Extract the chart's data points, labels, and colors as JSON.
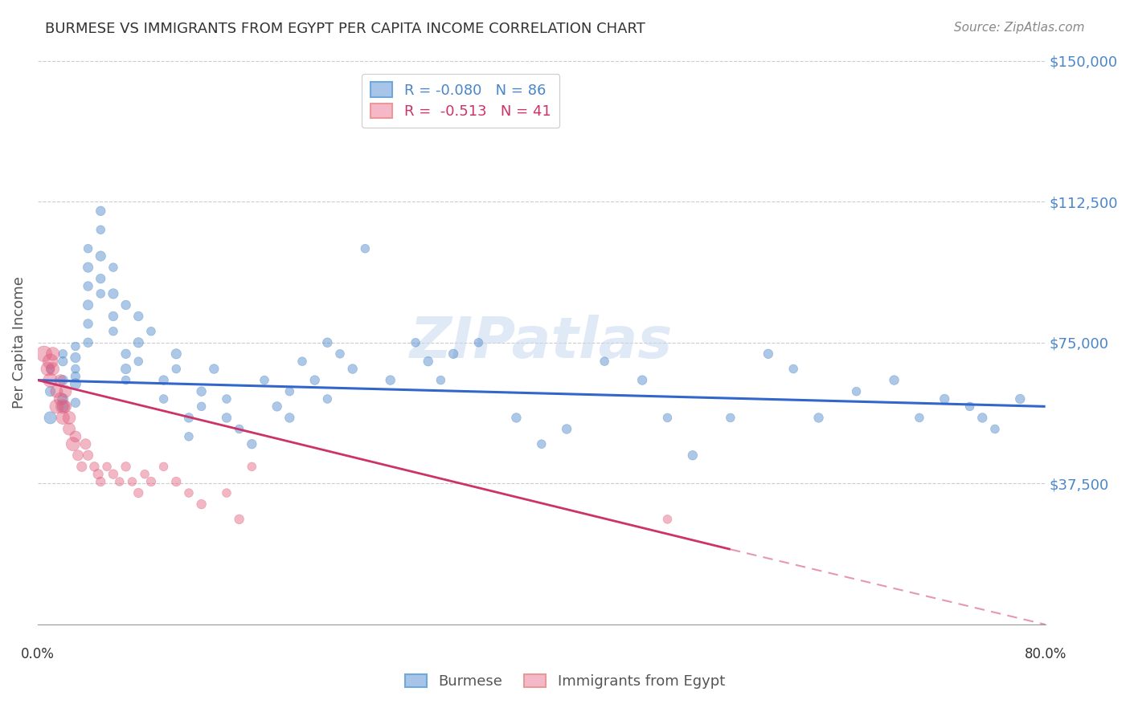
{
  "title": "BURMESE VS IMMIGRANTS FROM EGYPT PER CAPITA INCOME CORRELATION CHART",
  "source": "Source: ZipAtlas.com",
  "ylabel": "Per Capita Income",
  "yticks": [
    0,
    37500,
    75000,
    112500,
    150000
  ],
  "ytick_labels": [
    "",
    "$37,500",
    "$75,000",
    "$112,500",
    "$150,000"
  ],
  "ylim": [
    0,
    150000
  ],
  "xlim": [
    0.0,
    0.8
  ],
  "watermark": "ZIPatlas",
  "blue_color": "#4a86c8",
  "pink_color": "#e06080",
  "blue_line_color": "#3366cc",
  "pink_line_color": "#cc3366",
  "grid_color": "#cccccc",
  "title_color": "#333333",
  "axis_label_color": "#4a86c8",
  "burmese_scatter": {
    "x": [
      0.01,
      0.01,
      0.01,
      0.02,
      0.02,
      0.02,
      0.02,
      0.02,
      0.03,
      0.03,
      0.03,
      0.03,
      0.03,
      0.03,
      0.04,
      0.04,
      0.04,
      0.04,
      0.04,
      0.04,
      0.05,
      0.05,
      0.05,
      0.05,
      0.05,
      0.06,
      0.06,
      0.06,
      0.06,
      0.07,
      0.07,
      0.07,
      0.07,
      0.08,
      0.08,
      0.08,
      0.09,
      0.1,
      0.1,
      0.11,
      0.11,
      0.12,
      0.12,
      0.13,
      0.13,
      0.14,
      0.15,
      0.15,
      0.16,
      0.17,
      0.18,
      0.19,
      0.2,
      0.2,
      0.21,
      0.22,
      0.23,
      0.23,
      0.24,
      0.25,
      0.26,
      0.28,
      0.3,
      0.31,
      0.32,
      0.33,
      0.35,
      0.38,
      0.4,
      0.42,
      0.45,
      0.48,
      0.5,
      0.52,
      0.55,
      0.58,
      0.6,
      0.62,
      0.65,
      0.68,
      0.7,
      0.72,
      0.74,
      0.75,
      0.76,
      0.78
    ],
    "y": [
      62000,
      68000,
      55000,
      70000,
      65000,
      72000,
      60000,
      58000,
      66000,
      71000,
      68000,
      64000,
      59000,
      74000,
      80000,
      85000,
      90000,
      100000,
      95000,
      75000,
      88000,
      92000,
      98000,
      105000,
      110000,
      95000,
      88000,
      82000,
      78000,
      72000,
      68000,
      65000,
      85000,
      75000,
      70000,
      82000,
      78000,
      65000,
      60000,
      72000,
      68000,
      55000,
      50000,
      62000,
      58000,
      68000,
      60000,
      55000,
      52000,
      48000,
      65000,
      58000,
      62000,
      55000,
      70000,
      65000,
      60000,
      75000,
      72000,
      68000,
      100000,
      65000,
      75000,
      70000,
      65000,
      72000,
      75000,
      55000,
      48000,
      52000,
      70000,
      65000,
      55000,
      45000,
      55000,
      72000,
      68000,
      55000,
      62000,
      65000,
      55000,
      60000,
      58000,
      55000,
      52000,
      60000
    ],
    "sizes": [
      80,
      60,
      120,
      70,
      80,
      60,
      90,
      100,
      70,
      80,
      60,
      90,
      70,
      60,
      70,
      80,
      70,
      60,
      80,
      70,
      60,
      70,
      80,
      60,
      70,
      60,
      80,
      70,
      60,
      70,
      80,
      60,
      70,
      80,
      60,
      70,
      60,
      70,
      60,
      80,
      60,
      70,
      60,
      70,
      60,
      70,
      60,
      70,
      60,
      70,
      60,
      70,
      60,
      70,
      60,
      70,
      60,
      70,
      60,
      70,
      60,
      70,
      60,
      70,
      60,
      70,
      60,
      70,
      60,
      70,
      60,
      70,
      60,
      70,
      60,
      70,
      60,
      70,
      60,
      70,
      60,
      70,
      60,
      70,
      60,
      70
    ]
  },
  "egypt_scatter": {
    "x": [
      0.005,
      0.008,
      0.01,
      0.01,
      0.012,
      0.012,
      0.015,
      0.015,
      0.018,
      0.018,
      0.02,
      0.02,
      0.022,
      0.022,
      0.025,
      0.025,
      0.028,
      0.03,
      0.032,
      0.035,
      0.038,
      0.04,
      0.045,
      0.048,
      0.05,
      0.055,
      0.06,
      0.065,
      0.07,
      0.075,
      0.08,
      0.085,
      0.09,
      0.1,
      0.11,
      0.12,
      0.13,
      0.15,
      0.16,
      0.17,
      0.5
    ],
    "y": [
      72000,
      68000,
      70000,
      65000,
      72000,
      68000,
      62000,
      58000,
      65000,
      60000,
      58000,
      55000,
      62000,
      58000,
      55000,
      52000,
      48000,
      50000,
      45000,
      42000,
      48000,
      45000,
      42000,
      40000,
      38000,
      42000,
      40000,
      38000,
      42000,
      38000,
      35000,
      40000,
      38000,
      42000,
      38000,
      35000,
      32000,
      35000,
      28000,
      42000,
      28000
    ],
    "sizes": [
      200,
      150,
      180,
      160,
      140,
      130,
      120,
      150,
      100,
      130,
      160,
      140,
      120,
      110,
      130,
      120,
      150,
      100,
      90,
      80,
      90,
      80,
      70,
      80,
      70,
      60,
      70,
      60,
      70,
      60,
      70,
      60,
      70,
      60,
      70,
      60,
      70,
      60,
      70,
      60,
      60
    ]
  },
  "blue_trendline": {
    "x": [
      0.0,
      0.8
    ],
    "y": [
      65000,
      58000
    ]
  },
  "pink_trendline": {
    "x": [
      0.0,
      0.55
    ],
    "y": [
      65000,
      20000
    ]
  },
  "pink_trendline_dashed": {
    "x": [
      0.55,
      0.8
    ],
    "y": [
      20000,
      0
    ]
  }
}
